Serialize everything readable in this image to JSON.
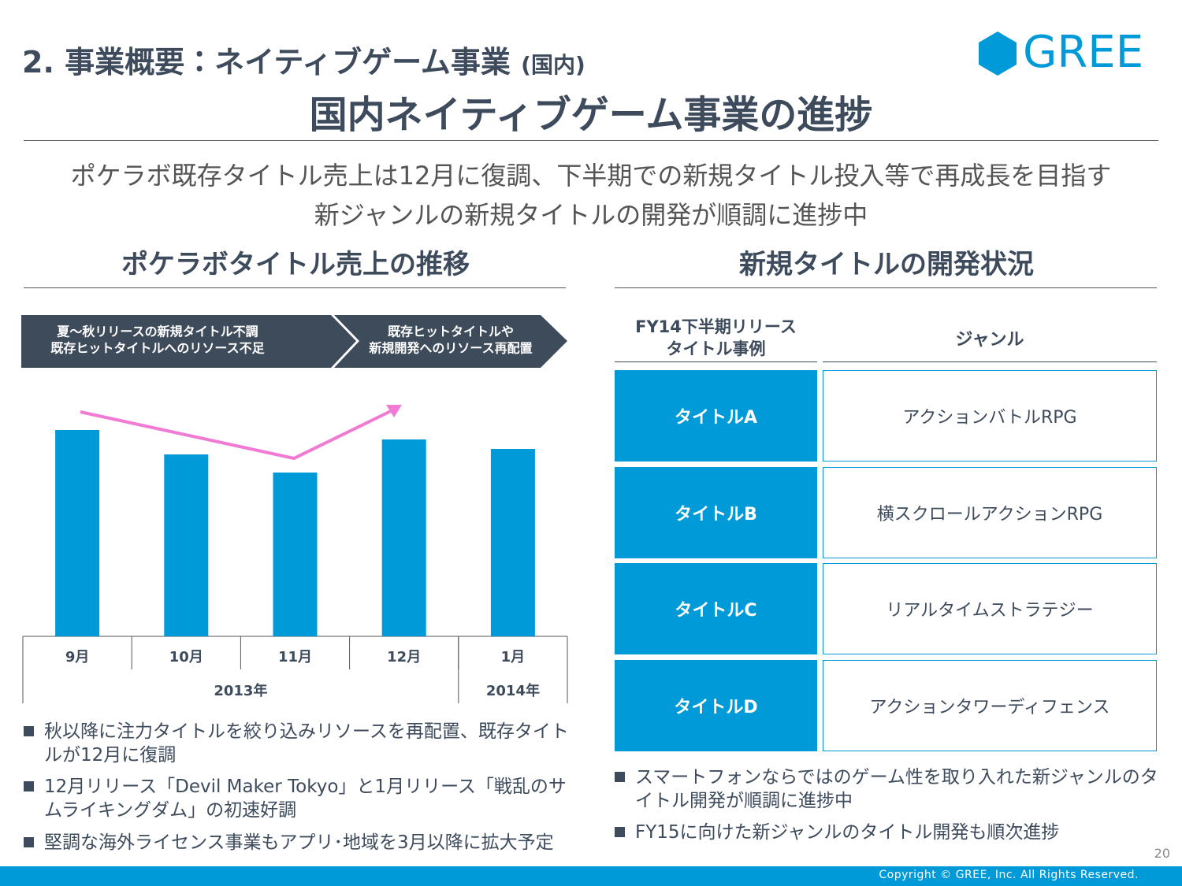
{
  "header": {
    "section": "2. 事業概要：ネイティブゲーム事業",
    "section_note": "(国内)",
    "logo": "GREE",
    "title": "国内ネイティブゲーム事業の進捗"
  },
  "summary": [
    "ポケラボ既存タイトル売上は12月に復調、下半期での新規タイトル投入等で再成長を目指す",
    "新ジャンルの新規タイトルの開発が順調に進捗中"
  ],
  "left": {
    "heading": "ポケラボタイトル売上の推移",
    "banner": [
      [
        "夏～秋リリースの新規タイトル不調",
        "既存ヒットタイトルへのリソース不足"
      ],
      [
        "既存ヒットタイトルや",
        "新規開発へのリソース再配置"
      ]
    ],
    "bullets": [
      "秋以降に注力タイトルを絞り込みリソースを再配置、既存タイトルが12月に復調",
      "12月リリース「Devil Maker Tokyo」と1月リリース「戦乱のサムライキングダム」の初速好調",
      "堅調な海外ライセンス事業もアプリ･地域を3月以降に拡大予定"
    ]
  },
  "chart_data": {
    "type": "bar",
    "categories": [
      "9月",
      "10月",
      "11月",
      "12月",
      "1月"
    ],
    "groups": [
      "2013年",
      "2014年"
    ],
    "values": [
      262,
      231,
      208,
      250,
      238
    ],
    "color": "#009ad8"
  },
  "right": {
    "heading": "新規タイトルの開発状況",
    "table": {
      "header": [
        [
          "FY14下半期リリース",
          "タイトル事例"
        ],
        "ジャンル"
      ],
      "rows": [
        [
          "タイトルA",
          "アクションバトルRPG"
        ],
        [
          "タイトルB",
          "横スクロールアクションRPG"
        ],
        [
          "タイトルC",
          "リアルタイムストラテジー"
        ],
        [
          "タイトルD",
          "アクションタワーディフェンス"
        ]
      ]
    },
    "bullets": [
      "スマートフォンならではのゲーム性を取り入れた新ジャンルのタイトル開発が順調に進捗中",
      "FY15に向けた新ジャンルのタイトル開発も順次進捗"
    ]
  },
  "footer": {
    "page_number": "20",
    "copyright": "Copyright © GREE, Inc. All Rights Reserved."
  }
}
